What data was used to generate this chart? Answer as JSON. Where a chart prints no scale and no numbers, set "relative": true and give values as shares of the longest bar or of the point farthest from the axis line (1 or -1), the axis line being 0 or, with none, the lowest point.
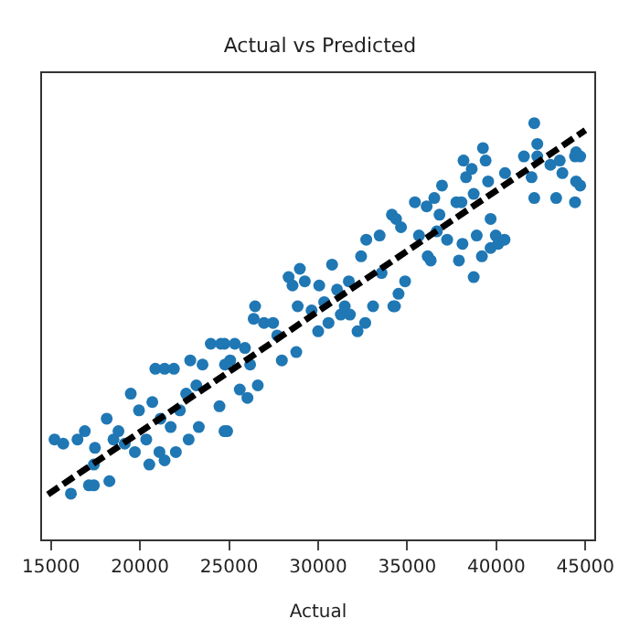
{
  "chart_data": {
    "type": "scatter",
    "title": "Actual vs Predicted",
    "xlabel": "Actual",
    "relative": true,
    "xlim": [
      14500,
      45500
    ],
    "xticks": [
      15000,
      20000,
      25000,
      30000,
      35000,
      40000,
      45000
    ],
    "grid": false,
    "marker": "circle",
    "series": [
      {
        "color": "#1f77b4",
        "x": [
          15200,
          15690,
          16120,
          16490,
          16900,
          17470,
          17410,
          17130,
          17410,
          18130,
          18280,
          18510,
          18790,
          19140,
          19480,
          19710,
          19940,
          20350,
          20520,
          20690,
          20860,
          21090,
          21150,
          21380,
          21380,
          21720,
          21900,
          22010,
          22240,
          22590,
          22730,
          22820,
          23160,
          23300,
          23510,
          23970,
          24540,
          24770,
          24890,
          25060,
          24460,
          24740,
          24740,
          25320,
          25600,
          25890,
          26030,
          26180,
          26460,
          26380,
          26610,
          26960,
          27470,
          27700,
          27960,
          28340,
          28560,
          28770,
          28850,
          28970,
          29250,
          29630,
          30060,
          30000,
          30340,
          30580,
          30780,
          31060,
          31270,
          31490,
          31780,
          31720,
          32210,
          32410,
          32700,
          32640,
          33080,
          33450,
          33560,
          34140,
          34370,
          34220,
          34310,
          34510,
          34880,
          34650,
          35430,
          35660,
          36090,
          36150,
          36320,
          36520,
          36660,
          36810,
          36950,
          37240,
          37760,
          38040,
          37900,
          38100,
          38160,
          38300,
          38620,
          38730,
          38730,
          38900,
          39190,
          39250,
          39400,
          39540,
          39680,
          39680,
          39970,
          40110,
          40460,
          40490,
          41550,
          41980,
          42130,
          42300,
          42300,
          42130,
          43040,
          43360,
          43560,
          43710,
          44420,
          44480,
          44710,
          44480,
          44710,
          44420
        ],
        "values": [
          0.24,
          0.23,
          0.11,
          0.24,
          0.26,
          0.22,
          0.18,
          0.13,
          0.13,
          0.29,
          0.14,
          0.24,
          0.26,
          0.23,
          0.35,
          0.21,
          0.31,
          0.24,
          0.18,
          0.33,
          0.41,
          0.21,
          0.29,
          0.41,
          0.19,
          0.27,
          0.41,
          0.21,
          0.31,
          0.35,
          0.24,
          0.43,
          0.37,
          0.27,
          0.42,
          0.47,
          0.47,
          0.42,
          0.26,
          0.43,
          0.32,
          0.26,
          0.47,
          0.47,
          0.36,
          0.46,
          0.34,
          0.42,
          0.56,
          0.53,
          0.37,
          0.52,
          0.52,
          0.49,
          0.43,
          0.63,
          0.61,
          0.45,
          0.56,
          0.65,
          0.62,
          0.55,
          0.61,
          0.5,
          0.57,
          0.52,
          0.66,
          0.6,
          0.54,
          0.56,
          0.54,
          0.62,
          0.5,
          0.68,
          0.72,
          0.52,
          0.56,
          0.73,
          0.64,
          0.78,
          0.77,
          0.56,
          0.56,
          0.59,
          0.62,
          0.75,
          0.81,
          0.73,
          0.8,
          0.68,
          0.67,
          0.82,
          0.74,
          0.78,
          0.85,
          0.72,
          0.81,
          0.81,
          0.67,
          0.71,
          0.91,
          0.87,
          0.89,
          0.83,
          0.63,
          0.73,
          0.68,
          0.94,
          0.91,
          0.86,
          0.77,
          0.7,
          0.73,
          0.71,
          0.72,
          0.88,
          0.92,
          0.87,
          1.0,
          0.95,
          0.92,
          0.82,
          0.9,
          0.82,
          0.91,
          0.88,
          0.92,
          0.93,
          0.92,
          0.86,
          0.85,
          0.81
        ]
      },
      {
        "type": "line",
        "color": "#000000",
        "line_style": "dashed",
        "marker": "none",
        "x": [
          14830,
          45000
        ],
        "values": [
          0.108,
          0.983
        ]
      }
    ]
  }
}
